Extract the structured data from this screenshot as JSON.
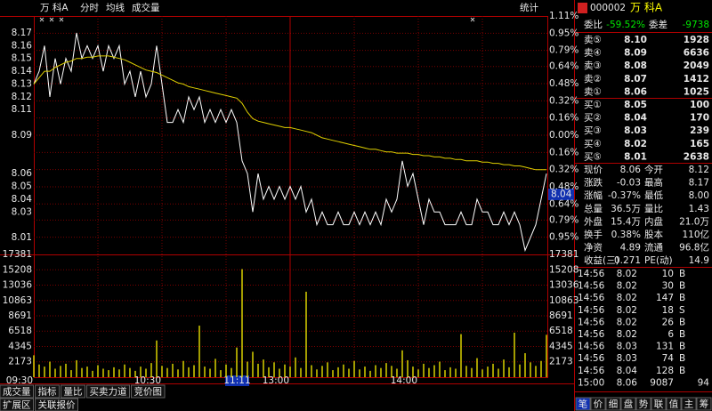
{
  "header": {
    "name": "万 科A",
    "items": [
      {
        "text": "分时",
        "color": "#e8e8e8"
      },
      {
        "text": "均线",
        "color": "#ffff00"
      },
      {
        "text": "成交量",
        "color": "#ff9a30"
      }
    ],
    "stat": "统计"
  },
  "chart_data": [
    {
      "type": "line",
      "categories": [
        "09:30",
        null,
        null,
        null,
        null,
        null,
        null,
        null,
        null,
        null,
        null,
        null,
        null,
        null,
        null,
        null,
        null,
        null,
        null,
        null,
        null,
        null,
        null,
        null,
        "10:30",
        null,
        null,
        null,
        null,
        null,
        null,
        null,
        null,
        null,
        null,
        null,
        null,
        null,
        null,
        null,
        null,
        null,
        null,
        null,
        null,
        null,
        null,
        null,
        "13:00",
        null,
        null,
        null,
        null,
        null,
        null,
        null,
        null,
        null,
        null,
        null,
        null,
        null,
        null,
        null,
        null,
        null,
        null,
        null,
        null,
        null,
        null,
        null,
        "14:00",
        null,
        null,
        null,
        null,
        null,
        null,
        null,
        null,
        null,
        null,
        null,
        null,
        null,
        null,
        null,
        null,
        null,
        null,
        null,
        null,
        null,
        null,
        null,
        null
      ],
      "series": [
        {
          "color": "#ffffff",
          "values": [
            8.13,
            8.14,
            8.16,
            8.12,
            8.15,
            8.13,
            8.15,
            8.14,
            8.17,
            8.15,
            8.16,
            8.15,
            8.16,
            8.14,
            8.16,
            8.15,
            8.16,
            8.13,
            8.14,
            8.12,
            8.14,
            8.12,
            8.13,
            8.16,
            8.13,
            8.1,
            8.1,
            8.11,
            8.1,
            8.12,
            8.11,
            8.12,
            8.1,
            8.11,
            8.1,
            8.11,
            8.1,
            8.11,
            8.1,
            8.07,
            8.06,
            8.03,
            8.06,
            8.04,
            8.05,
            8.04,
            8.05,
            8.04,
            8.05,
            8.04,
            8.05,
            8.03,
            8.04,
            8.02,
            8.03,
            8.02,
            8.02,
            8.03,
            8.02,
            8.02,
            8.03,
            8.02,
            8.03,
            8.02,
            8.03,
            8.02,
            8.04,
            8.03,
            8.04,
            8.07,
            8.05,
            8.06,
            8.04,
            8.02,
            8.04,
            8.03,
            8.03,
            8.02,
            8.02,
            8.02,
            8.03,
            8.02,
            8.02,
            8.04,
            8.03,
            8.03,
            8.02,
            8.02,
            8.03,
            8.02,
            8.03,
            8.02,
            8.0,
            8.01,
            8.02,
            8.04,
            8.06
          ]
        },
        {
          "color": "#e0d000",
          "values": [
            8.13,
            8.135,
            8.14,
            8.14,
            8.143,
            8.145,
            8.147,
            8.148,
            8.15,
            8.15,
            8.151,
            8.151,
            8.152,
            8.152,
            8.152,
            8.151,
            8.15,
            8.149,
            8.147,
            8.145,
            8.143,
            8.141,
            8.14,
            8.139,
            8.137,
            8.135,
            8.133,
            8.131,
            8.13,
            8.128,
            8.127,
            8.126,
            8.125,
            8.124,
            8.123,
            8.122,
            8.121,
            8.12,
            8.119,
            8.115,
            8.108,
            8.103,
            8.101,
            8.1,
            8.099,
            8.098,
            8.097,
            8.096,
            8.096,
            8.095,
            8.094,
            8.093,
            8.092,
            8.09,
            8.088,
            8.087,
            8.086,
            8.085,
            8.084,
            8.083,
            8.082,
            8.081,
            8.08,
            8.079,
            8.079,
            8.078,
            8.077,
            8.077,
            8.076,
            8.076,
            8.076,
            8.075,
            8.075,
            8.074,
            8.074,
            8.073,
            8.073,
            8.072,
            8.072,
            8.071,
            8.071,
            8.07,
            8.07,
            8.07,
            8.069,
            8.069,
            8.068,
            8.068,
            8.067,
            8.067,
            8.066,
            8.066,
            8.065,
            8.064,
            8.063,
            8.063,
            8.063
          ]
        }
      ],
      "ylim": [
        7.9968,
        8.1832
      ],
      "yticks": [
        8.17,
        8.16,
        8.15,
        8.14,
        8.13,
        8.12,
        8.11,
        8.09,
        8.06,
        8.05,
        8.04,
        8.03,
        8.01
      ],
      "y2lim": [
        -1.11,
        1.11
      ],
      "y2ticks": [
        {
          "value": 1.11,
          "label": "1.11%"
        },
        {
          "value": 0.95,
          "label": "0.95%"
        },
        {
          "value": 0.79,
          "label": "0.79%"
        },
        {
          "value": 0.64,
          "label": "0.64%"
        },
        {
          "value": 0.48,
          "label": "0.48%"
        },
        {
          "value": 0.32,
          "label": "0.32%"
        },
        {
          "value": 0.16,
          "label": "0.16%"
        },
        {
          "value": 0,
          "label": "0.00%"
        },
        {
          "value": -0.16,
          "label": "0.16%"
        },
        {
          "value": -0.32,
          "label": "0.32%"
        },
        {
          "value": -0.48,
          "label": "0.48%"
        },
        {
          "value": -0.64,
          "label": "0.64%"
        },
        {
          "value": -0.79,
          "label": "0.79%"
        },
        {
          "value": -0.95,
          "label": "0.95%"
        }
      ],
      "grid": true
    },
    {
      "type": "bar",
      "color": "#d8d000",
      "values": [
        3100,
        1800,
        1500,
        2200,
        1200,
        1600,
        1900,
        1000,
        2400,
        1300,
        1500,
        900,
        1700,
        1200,
        1000,
        1400,
        1100,
        1800,
        1300,
        900,
        1500,
        1200,
        2000,
        5200,
        1600,
        1300,
        1900,
        1100,
        2300,
        1400,
        1700,
        7300,
        1500,
        1200,
        2600,
        1000,
        1800,
        1300,
        4200,
        15300,
        2200,
        3600,
        1900,
        2500,
        1400,
        2100,
        1200,
        1800,
        1500,
        2800,
        1300,
        12100,
        1700,
        1100,
        1600,
        2100,
        1000,
        1400,
        1800,
        1200,
        2300,
        1100,
        1500,
        900,
        1700,
        1300,
        2000,
        1600,
        1200,
        3800,
        2400,
        1500,
        1100,
        1900,
        1300,
        1700,
        2200,
        1000,
        1400,
        1200,
        6100,
        1600,
        1300,
        2700,
        1100,
        1500,
        1900,
        1200,
        2500,
        1400,
        6300,
        1800,
        3400,
        2100,
        1600,
        2300,
        6000
      ],
      "ylim": [
        0,
        17381
      ],
      "yticks": [
        2173,
        4345,
        6518,
        8691,
        10863,
        13036,
        15208,
        17381
      ],
      "grid": true
    }
  ],
  "cursor": {
    "time": "11:11",
    "price": "8.04"
  },
  "quote": {
    "code": "000002",
    "name": "万 科A",
    "ratio_label": "委比",
    "ratio": "-59.52%",
    "diff_label": "委差",
    "diff": "-9738",
    "asks": [
      {
        "label": "卖⑤",
        "price": "8.10",
        "volume": "1928",
        "color": "#ff3232"
      },
      {
        "label": "卖④",
        "price": "8.09",
        "volume": "6636",
        "color": "#ffffff"
      },
      {
        "label": "卖③",
        "price": "8.08",
        "volume": "2049",
        "color": "#00e600"
      },
      {
        "label": "卖②",
        "price": "8.07",
        "volume": "1412",
        "color": "#00e600"
      },
      {
        "label": "卖①",
        "price": "8.06",
        "volume": "1025",
        "color": "#00e600"
      }
    ],
    "bids": [
      {
        "label": "买①",
        "price": "8.05",
        "volume": "100",
        "color": "#00e600"
      },
      {
        "label": "买②",
        "price": "8.04",
        "volume": "170",
        "color": "#00e600"
      },
      {
        "label": "买③",
        "price": "8.03",
        "volume": "239",
        "color": "#00e600"
      },
      {
        "label": "买④",
        "price": "8.02",
        "volume": "165",
        "color": "#00e600"
      },
      {
        "label": "买⑤",
        "price": "8.01",
        "volume": "2638",
        "color": "#00e600"
      }
    ],
    "stats": [
      {
        "label": "现价",
        "value": "8.06",
        "color": "#00e600"
      },
      {
        "label": "今开",
        "value": "8.12",
        "color": "#ff3232"
      },
      {
        "label": "涨跌",
        "value": "-0.03",
        "color": "#00e600"
      },
      {
        "label": "最高",
        "value": "8.17",
        "color": "#ff3232"
      },
      {
        "label": "涨幅",
        "value": "-0.37%",
        "color": "#00e600"
      },
      {
        "label": "最低",
        "value": "8.00",
        "color": "#00e600"
      },
      {
        "label": "总量",
        "value": "36.5万",
        "color": "#ffff00"
      },
      {
        "label": "量比",
        "value": "1.43",
        "color": "#ff3232"
      },
      {
        "label": "外盘",
        "value": "15.4万",
        "color": "#ff3232"
      },
      {
        "label": "内盘",
        "value": "21.0万",
        "color": "#00e600"
      },
      {
        "label": "换手",
        "value": "0.38%",
        "color": "#e8e8e8"
      },
      {
        "label": "股本",
        "value": "110亿",
        "color": "#e8e8e8"
      },
      {
        "label": "净资",
        "value": "4.89",
        "color": "#e8e8e8"
      },
      {
        "label": "流通",
        "value": "96.8亿",
        "color": "#e8e8e8"
      },
      {
        "label": "收益(三)",
        "value": "0.271",
        "color": "#e8e8e8"
      },
      {
        "label": "PE(动)",
        "value": "14.9",
        "color": "#e8e8e8"
      }
    ],
    "trades": [
      {
        "time": "14:56",
        "price": "8.02",
        "volume": "10",
        "side": "B",
        "side_color": "#ff3232"
      },
      {
        "time": "14:56",
        "price": "8.02",
        "volume": "30",
        "side": "B",
        "side_color": "#ff3232"
      },
      {
        "time": "14:56",
        "price": "8.02",
        "volume": "147",
        "side": "B",
        "side_color": "#ff3232"
      },
      {
        "time": "14:56",
        "price": "8.02",
        "volume": "18",
        "side": "S",
        "side_color": "#00e600"
      },
      {
        "time": "14:56",
        "price": "8.02",
        "volume": "26",
        "side": "B",
        "side_color": "#ff3232"
      },
      {
        "time": "14:56",
        "price": "8.02",
        "volume": "6",
        "side": "B",
        "side_color": "#ff3232"
      },
      {
        "time": "14:56",
        "price": "8.03",
        "volume": "131",
        "side": "B",
        "side_color": "#ff3232"
      },
      {
        "time": "14:56",
        "price": "8.03",
        "volume": "74",
        "side": "B",
        "side_color": "#ff3232"
      },
      {
        "time": "14:56",
        "price": "8.04",
        "volume": "128",
        "side": "B",
        "side_color": "#ff3232"
      },
      {
        "time": "15:00",
        "price": "8.06",
        "volume": "9087",
        "volume_color": "#c040ff",
        "count": "94"
      }
    ]
  },
  "tabs": {
    "row1": [
      "成交量",
      "指标",
      "量比",
      "买卖力道",
      "竞价图"
    ],
    "row2": [
      "扩展区",
      "关联报价"
    ],
    "right": [
      "笔",
      "价",
      "细",
      "盘",
      "势",
      "联",
      "值",
      "主",
      "筹"
    ]
  }
}
